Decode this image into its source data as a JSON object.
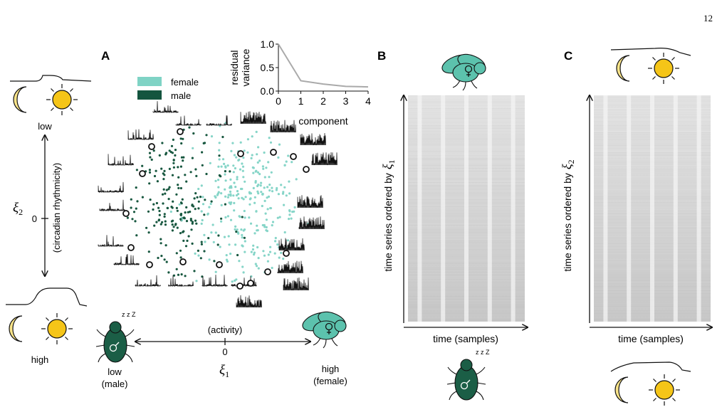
{
  "page_number": "12",
  "panels": {
    "a": "A",
    "b": "B",
    "c": "C"
  },
  "left_axis": {
    "top_label": "low",
    "bottom_label": "high",
    "rotated_label": "(circadian rhythmicity)",
    "symbol": "ξ",
    "symbol_sub": "2",
    "zero": "0"
  },
  "bottom_axis": {
    "label": "(activity)",
    "zero": "0",
    "symbol": "ξ",
    "symbol_sub": "1",
    "left_text_1": "low",
    "left_text_2": "(male)",
    "right_text_1": "high",
    "right_text_2": "(female)",
    "sleep_glyph": "z z Z"
  },
  "legend": {
    "female": "female",
    "male": "male",
    "female_color": "#7fd3c5",
    "male_color": "#14553f"
  },
  "colors": {
    "female_dot": "#86d5c8",
    "male_dot": "#17573f",
    "fly_body": "#5cc2ad",
    "fly_dark": "#1b5e46",
    "sun": "#f5c518",
    "moon": "#fbe58a",
    "raster_bg": "#d8d8d8"
  },
  "inset_chart": {
    "chart_data": {
      "type": "line",
      "x": [
        0,
        1,
        2,
        3,
        4
      ],
      "values": [
        1.0,
        0.22,
        0.15,
        0.1,
        0.09
      ],
      "xlabel": "component",
      "ylabel": "residual variance",
      "ylabel_line1": "residual",
      "ylabel_line2": "variance",
      "xlim": [
        0,
        4
      ],
      "ylim": [
        0,
        1
      ],
      "xticks": [
        "0",
        "1",
        "2",
        "3",
        "4"
      ],
      "yticks": [
        "0.0",
        "0.5",
        "1.0"
      ]
    }
  },
  "panel_b": {
    "ylabel": "time series ordered by",
    "ylabel_symbol": "ξ",
    "ylabel_sub": "1",
    "xlabel": "time (samples)",
    "sleep_glyph": "z z Z"
  },
  "panel_c": {
    "ylabel": "time series ordered by",
    "ylabel_symbol": "ξ",
    "ylabel_sub": "2",
    "xlabel": "time (samples)"
  },
  "icons": {
    "moon": "moon-icon",
    "sun": "sun-icon",
    "fly_female": "female-fly-icon",
    "fly_male": "male-fly-icon",
    "activity_curve": "activity-curve-icon"
  }
}
